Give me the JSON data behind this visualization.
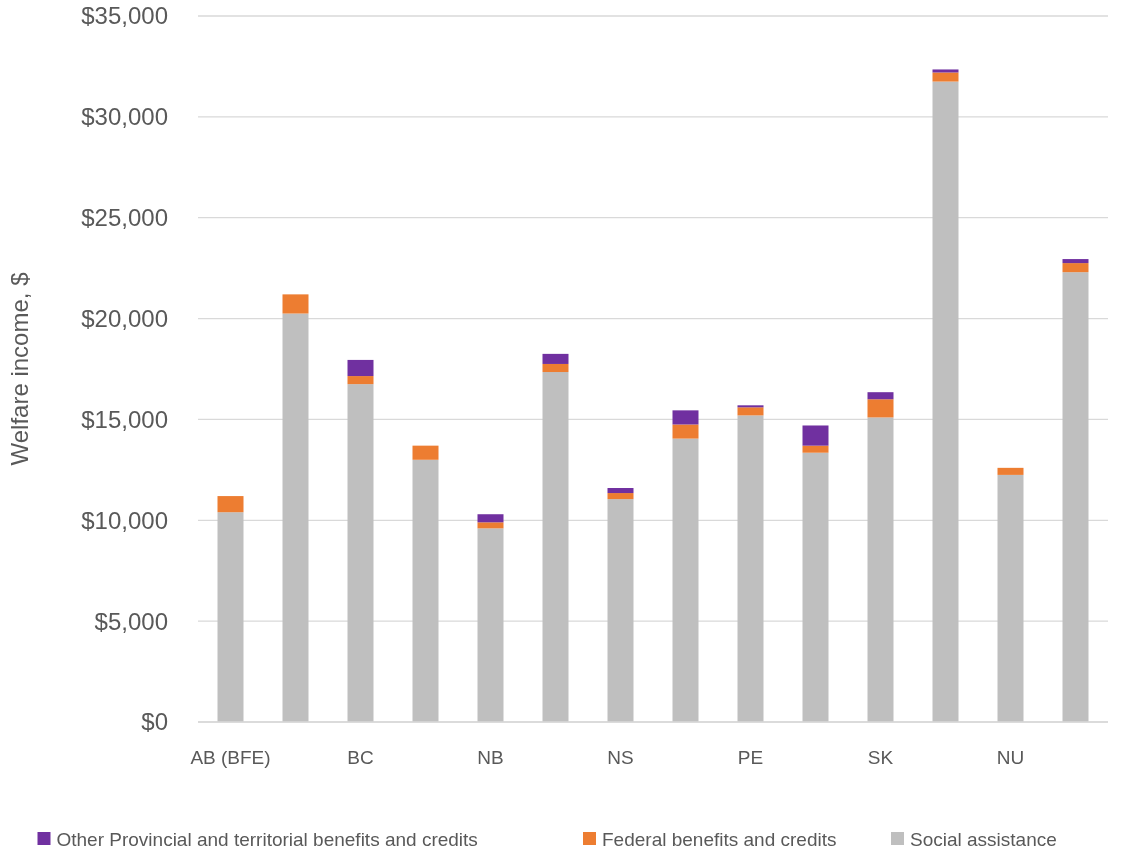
{
  "chart_data": {
    "type": "bar",
    "stacked": true,
    "ylabel": "Welfare income, $",
    "categories": [
      "AB (BFE)",
      null,
      "BC",
      null,
      "NB",
      null,
      "NS",
      null,
      "PE",
      null,
      "SK",
      null,
      "NU",
      null
    ],
    "series": [
      {
        "name": "Social assistance",
        "color": "#bfbfbf",
        "values": [
          10400,
          20250,
          16750,
          13000,
          9600,
          17350,
          11050,
          14050,
          15200,
          13350,
          15100,
          31750,
          12250,
          22300
        ]
      },
      {
        "name": "Federal benefits and credits",
        "color": "#ed7d31",
        "values": [
          800,
          950,
          400,
          700,
          300,
          400,
          300,
          700,
          400,
          350,
          900,
          450,
          350,
          450
        ]
      },
      {
        "name": "Other Provincial and territorial benefits and credits",
        "color": "#7030a0",
        "values": [
          0,
          0,
          800,
          0,
          400,
          500,
          250,
          700,
          100,
          1000,
          350,
          150,
          0,
          200
        ]
      }
    ],
    "ylim": [
      0,
      35000
    ],
    "yticks": [
      {
        "value": 0,
        "label": "$0"
      },
      {
        "value": 5000,
        "label": "$5,000"
      },
      {
        "value": 10000,
        "label": "$10,000"
      },
      {
        "value": 15000,
        "label": "$15,000"
      },
      {
        "value": 20000,
        "label": "$20,000"
      },
      {
        "value": 25000,
        "label": "$25,000"
      },
      {
        "value": 30000,
        "label": "$30,000"
      },
      {
        "value": 35000,
        "label": "$35,000"
      }
    ],
    "grid": "y",
    "legend": "bottom"
  }
}
